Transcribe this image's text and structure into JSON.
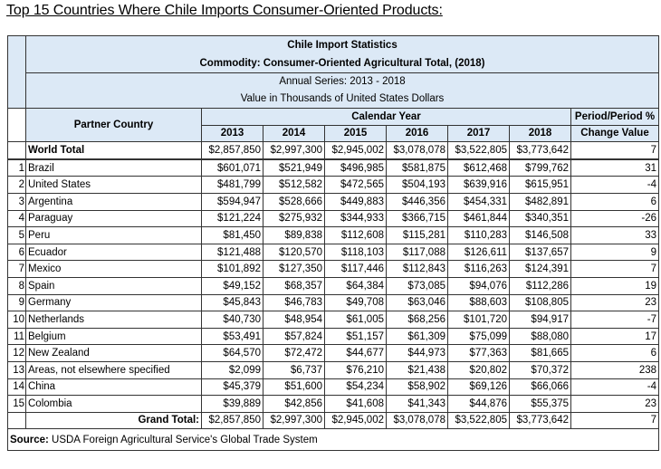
{
  "title": "Top 15 Countries Where Chile Imports Consumer-Oriented Products:",
  "table": {
    "heading1": "Chile Import Statistics",
    "heading2": "Commodity: Consumer-Oriented Agricultural Total, (2018)",
    "heading3": "Annual Series: 2013 - 2018",
    "heading4": "Value in Thousands of United States Dollars",
    "partner_header": "Partner Country",
    "calendar_header": "Calendar Year",
    "change_header_1": "Period/Period %",
    "change_header_2": "Change Value",
    "years": [
      "2013",
      "2014",
      "2015",
      "2016",
      "2017",
      "2018"
    ],
    "world_total": {
      "label": "World Total",
      "values": [
        "$2,857,850",
        "$2,997,300",
        "$2,945,002",
        "$3,078,078",
        "$3,522,805",
        "$3,773,642"
      ],
      "change": "7"
    },
    "rows": [
      {
        "rank": "1",
        "country": "Brazil",
        "values": [
          "$601,071",
          "$521,949",
          "$496,985",
          "$581,875",
          "$612,468",
          "$799,762"
        ],
        "change": "31"
      },
      {
        "rank": "2",
        "country": "United States",
        "values": [
          "$481,799",
          "$512,582",
          "$472,565",
          "$504,193",
          "$639,916",
          "$615,951"
        ],
        "change": "-4"
      },
      {
        "rank": "3",
        "country": "Argentina",
        "values": [
          "$594,947",
          "$528,666",
          "$449,883",
          "$446,356",
          "$454,331",
          "$482,891"
        ],
        "change": "6"
      },
      {
        "rank": "4",
        "country": "Paraguay",
        "values": [
          "$121,224",
          "$275,932",
          "$344,933",
          "$366,715",
          "$461,844",
          "$340,351"
        ],
        "change": "-26"
      },
      {
        "rank": "5",
        "country": "Peru",
        "values": [
          "$81,450",
          "$89,838",
          "$112,608",
          "$115,281",
          "$110,283",
          "$146,508"
        ],
        "change": "33"
      },
      {
        "rank": "6",
        "country": "Ecuador",
        "values": [
          "$121,488",
          "$120,570",
          "$118,103",
          "$117,088",
          "$126,611",
          "$137,657"
        ],
        "change": "9"
      },
      {
        "rank": "7",
        "country": "Mexico",
        "values": [
          "$101,892",
          "$127,350",
          "$117,446",
          "$112,843",
          "$116,263",
          "$124,391"
        ],
        "change": "7"
      },
      {
        "rank": "8",
        "country": "Spain",
        "values": [
          "$49,152",
          "$68,357",
          "$64,384",
          "$73,085",
          "$94,076",
          "$112,286"
        ],
        "change": "19"
      },
      {
        "rank": "9",
        "country": "Germany",
        "values": [
          "$45,843",
          "$46,783",
          "$49,708",
          "$63,046",
          "$88,603",
          "$108,805"
        ],
        "change": "23"
      },
      {
        "rank": "10",
        "country": "Netherlands",
        "values": [
          "$40,730",
          "$48,954",
          "$61,005",
          "$68,256",
          "$101,720",
          "$94,917"
        ],
        "change": "-7"
      },
      {
        "rank": "11",
        "country": "Belgium",
        "values": [
          "$53,491",
          "$57,824",
          "$51,157",
          "$61,309",
          "$75,099",
          "$88,080"
        ],
        "change": "17"
      },
      {
        "rank": "12",
        "country": "New Zealand",
        "values": [
          "$64,570",
          "$72,472",
          "$44,677",
          "$44,973",
          "$77,363",
          "$81,665"
        ],
        "change": "6"
      },
      {
        "rank": "13",
        "country": "Areas, not elsewhere specified",
        "values": [
          "$2,099",
          "$6,737",
          "$76,210",
          "$21,438",
          "$20,802",
          "$70,372"
        ],
        "change": "238"
      },
      {
        "rank": "14",
        "country": "China",
        "values": [
          "$45,379",
          "$51,600",
          "$54,234",
          "$58,902",
          "$69,126",
          "$66,066"
        ],
        "change": "-4"
      },
      {
        "rank": "15",
        "country": "Colombia",
        "values": [
          "$39,889",
          "$42,856",
          "$41,608",
          "$41,343",
          "$44,876",
          "$55,375"
        ],
        "change": "23"
      }
    ],
    "grand_total": {
      "label": "Grand Total:",
      "values": [
        "$2,857,850",
        "$2,997,300",
        "$2,945,002",
        "$3,078,078",
        "$3,522,805",
        "$3,773,642"
      ],
      "change": "7"
    },
    "source_label": "Source:",
    "source_text": " USDA Foreign Agricultural Service's Global Trade System",
    "header_bg": "#dce9f6"
  }
}
